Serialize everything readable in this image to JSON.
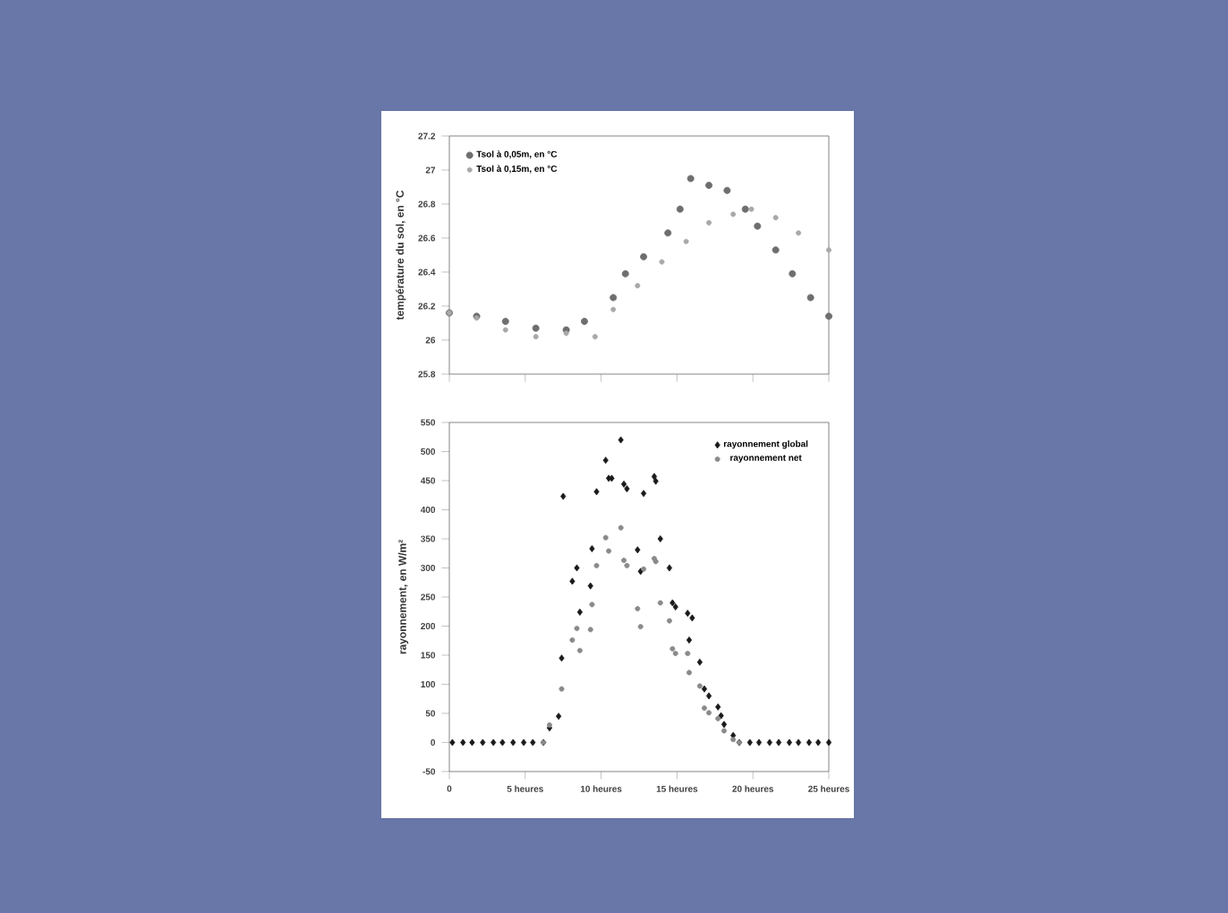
{
  "chart_data": [
    {
      "type": "scatter",
      "ylabel": "température du sol, en °C",
      "xlim": [
        0,
        25
      ],
      "ylim": [
        25.8,
        27.2
      ],
      "xticks": [
        0,
        5,
        10,
        15,
        20,
        25
      ],
      "yticks": [
        25.8,
        26,
        26.2,
        26.4,
        26.6,
        26.8,
        27,
        27.2
      ],
      "tick_labels": "y",
      "legend": "top left",
      "grid": false,
      "series": [
        {
          "name": "Tsol à 0,05m, en °C",
          "color": "#6e6e6e",
          "marker": "circle",
          "x": [
            0,
            1.8,
            3.7,
            5.7,
            7.7,
            8.9,
            10.8,
            11.6,
            12.8,
            14.4,
            15.2,
            15.9,
            17.1,
            18.3,
            19.5,
            20.3,
            21.5,
            22.6,
            23.8,
            25
          ],
          "values": [
            26.16,
            26.14,
            26.11,
            26.07,
            26.06,
            26.11,
            26.25,
            26.39,
            26.49,
            26.63,
            26.77,
            26.95,
            26.91,
            26.88,
            26.77,
            26.67,
            26.53,
            26.39,
            26.25,
            26.14
          ]
        },
        {
          "name": "Tsol à 0,15m, en °C",
          "color": "#a8a8a8",
          "marker": "circle",
          "x": [
            0,
            1.8,
            3.7,
            5.7,
            7.7,
            9.6,
            10.8,
            12.4,
            14.0,
            15.6,
            17.1,
            18.7,
            19.9,
            21.5,
            23.0,
            25
          ],
          "values": [
            26.16,
            26.13,
            26.06,
            26.02,
            26.04,
            26.02,
            26.18,
            26.32,
            26.46,
            26.58,
            26.69,
            26.74,
            26.77,
            26.72,
            26.63,
            26.53
          ]
        }
      ]
    },
    {
      "type": "scatter",
      "ylabel": "rayonnement, en W/m²",
      "xlim": [
        0,
        25
      ],
      "ylim": [
        -50,
        550
      ],
      "xticks": [
        0,
        {
          "value": 5,
          "label": "5 heures"
        },
        {
          "value": 10,
          "label": "10 heures"
        },
        {
          "value": 15,
          "label": "15 heures"
        },
        {
          "value": 20,
          "label": "20 heures"
        },
        {
          "value": 25,
          "label": "25 heures"
        }
      ],
      "yticks": [
        -50,
        0,
        50,
        100,
        150,
        200,
        250,
        300,
        350,
        400,
        450,
        500,
        550
      ],
      "legend": "top right",
      "grid": false,
      "series": [
        {
          "name": "rayonnement global",
          "color": "#1a1a1a",
          "marker": "diamond",
          "x": [
            0.2,
            0.9,
            1.5,
            2.2,
            2.9,
            3.5,
            4.2,
            4.9,
            5.5,
            6.2,
            6.6,
            7.2,
            7.4,
            7.5,
            8.1,
            8.4,
            8.6,
            9.3,
            9.4,
            9.7,
            10.3,
            10.5,
            10.7,
            11.3,
            11.5,
            11.7,
            12.4,
            12.6,
            12.8,
            13.5,
            13.6,
            13.9,
            14.5,
            14.7,
            14.9,
            15.7,
            15.8,
            16.0,
            16.5,
            16.8,
            17.1,
            17.7,
            17.9,
            18.1,
            18.7,
            19.1,
            19.8,
            20.4,
            21.1,
            21.7,
            22.4,
            23.0,
            23.7,
            24.3,
            25.0
          ],
          "values": [
            0,
            0,
            0,
            0,
            0,
            0,
            0,
            0,
            0,
            0,
            25,
            45,
            145,
            423,
            277,
            300,
            224,
            269,
            333,
            431,
            485,
            454,
            454,
            520,
            444,
            436,
            331,
            294,
            428,
            457,
            449,
            350,
            300,
            240,
            233,
            222,
            176,
            214,
            138,
            92,
            80,
            61,
            46,
            31,
            12,
            0,
            0,
            0,
            0,
            0,
            0,
            0,
            0,
            0,
            0
          ]
        },
        {
          "name": "rayonnement net",
          "color": "#8a8a8a",
          "marker": "circle",
          "x": [
            6.2,
            6.6,
            7.4,
            8.1,
            8.4,
            8.6,
            9.3,
            9.4,
            9.7,
            10.3,
            10.5,
            11.3,
            11.5,
            11.7,
            12.4,
            12.6,
            12.8,
            13.5,
            13.6,
            13.9,
            14.5,
            14.7,
            14.9,
            15.7,
            15.8,
            16.5,
            16.8,
            17.1,
            17.7,
            18.1,
            18.7,
            19.1
          ],
          "values": [
            0,
            30,
            92,
            176,
            196,
            158,
            194,
            237,
            304,
            352,
            329,
            369,
            313,
            304,
            230,
            199,
            298,
            316,
            311,
            240,
            209,
            161,
            153,
            153,
            120,
            97,
            59,
            51,
            41,
            20,
            5,
            0
          ]
        }
      ]
    }
  ]
}
